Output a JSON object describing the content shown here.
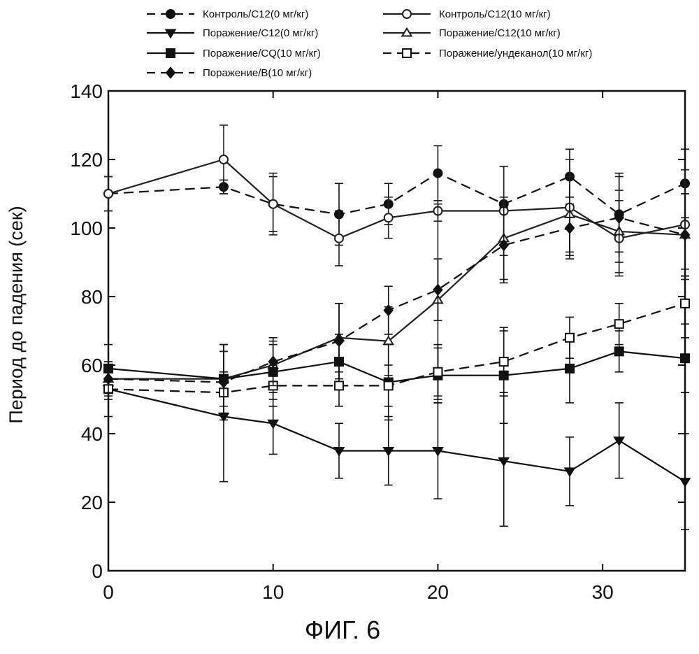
{
  "chart_data": {
    "type": "line",
    "caption": "ФИГ. 6",
    "xlabel": "",
    "ylabel": "Период до падения (сек)",
    "xlim": [
      0,
      35
    ],
    "ylim": [
      0,
      140
    ],
    "xticks": [
      0,
      10,
      20,
      30
    ],
    "yticks": [
      0,
      20,
      40,
      60,
      80,
      100,
      120,
      140
    ],
    "grid": false,
    "legend_position": "top",
    "series": [
      {
        "name": "Контроль/C12(0 мг/кг)",
        "marker": "circle-filled",
        "dashed": true,
        "color": "#111111",
        "x": [
          0,
          7,
          10,
          14,
          17,
          20,
          24,
          28,
          31,
          35
        ],
        "y": [
          110,
          112,
          107,
          104,
          107,
          116,
          107,
          115,
          104,
          113
        ],
        "err": [
          5,
          2,
          8,
          9,
          6,
          8,
          11,
          8,
          11,
          10
        ]
      },
      {
        "name": "Контроль/C12(10 мг/кг)",
        "marker": "circle-open",
        "dashed": false,
        "color": "#222222",
        "x": [
          0,
          7,
          10,
          14,
          17,
          20,
          24,
          28,
          31,
          35
        ],
        "y": [
          110,
          120,
          107,
          97,
          103,
          105,
          105,
          106,
          97,
          101
        ],
        "err": [
          5,
          10,
          9,
          8,
          6,
          3,
          13,
          14,
          11,
          16
        ]
      },
      {
        "name": "Поражение/C12(0 мг/кг)",
        "marker": "triangle-down-filled",
        "dashed": false,
        "color": "#111111",
        "x": [
          0,
          7,
          10,
          14,
          17,
          20,
          24,
          28,
          31,
          35
        ],
        "y": [
          53,
          45,
          43,
          35,
          35,
          35,
          32,
          29,
          38,
          26
        ],
        "err": [
          8,
          19,
          9,
          8,
          10,
          14,
          19,
          10,
          11,
          14
        ]
      },
      {
        "name": "Поражение/C12(10 мг/кг)",
        "marker": "triangle-up-open",
        "dashed": false,
        "color": "#222222",
        "x": [
          0,
          7,
          10,
          14,
          17,
          20,
          24,
          28,
          31,
          35
        ],
        "y": [
          56,
          56,
          60,
          68,
          67,
          79,
          97,
          104,
          99,
          98
        ],
        "err": [
          5,
          8,
          7,
          10,
          10,
          28,
          12,
          11,
          12,
          12
        ]
      },
      {
        "name": "Поражение/CQ(10 мг/кг)",
        "marker": "square-filled",
        "dashed": false,
        "color": "#111111",
        "x": [
          0,
          7,
          10,
          14,
          17,
          20,
          24,
          28,
          31,
          35
        ],
        "y": [
          59,
          56,
          58,
          61,
          55,
          57,
          57,
          59,
          64,
          62
        ],
        "err": [
          7,
          10,
          8,
          8,
          11,
          8,
          14,
          10,
          6,
          10
        ]
      },
      {
        "name": "Поражение/ундеканол(10 мг/кг)",
        "marker": "square-open",
        "dashed": true,
        "color": "#111111",
        "x": [
          0,
          7,
          10,
          14,
          17,
          20,
          24,
          28,
          31,
          35
        ],
        "y": [
          53,
          52,
          54,
          54,
          54,
          58,
          61,
          68,
          72,
          78
        ],
        "err": [
          3,
          6,
          6,
          6,
          6,
          8,
          9,
          6,
          6,
          10
        ]
      },
      {
        "name": "Поражение/B(10 мг/кг)",
        "marker": "diamond-filled",
        "dashed": true,
        "color": "#111111",
        "x": [
          0,
          7,
          10,
          14,
          17,
          20,
          24,
          28,
          31,
          35
        ],
        "y": [
          56,
          55,
          61,
          67,
          76,
          82,
          95,
          100,
          103,
          98
        ],
        "err": [
          4,
          11,
          7,
          11,
          7,
          9,
          11,
          9,
          13,
          12
        ]
      }
    ]
  }
}
